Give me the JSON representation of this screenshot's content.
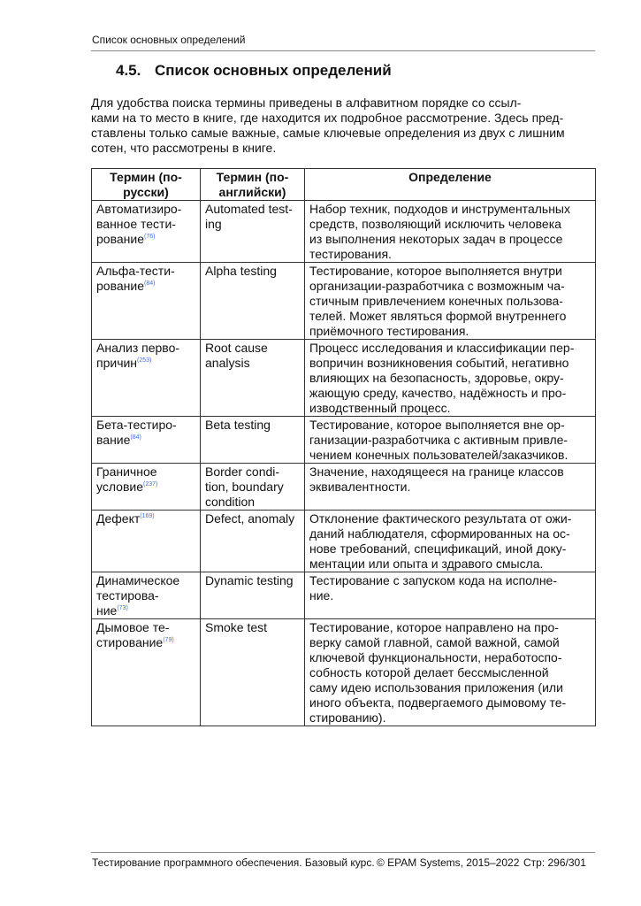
{
  "running_head": "Список основных определений",
  "section": {
    "number": "4.5.",
    "title": "Список основных определений"
  },
  "intro": "            Для удобства поиска термины приведены в алфавитном порядке со ссыл-\nками на то место в книге, где находится их подробное рассмотрение. Здесь пред-\nставлены только самые важные, самые ключевые определения из двух с лишним\nсотен, что рассмотрены в книге.",
  "table": {
    "headers": [
      "Термин (по-\nрусски)",
      "Термин (по-\nанглийски)",
      "Определение"
    ],
    "rows": [
      {
        "ru": "Автоматизиро-\nванное тести-\nрование",
        "ref": "(76)",
        "en": "Automated test-\ning",
        "def": "Набор техник, подходов и инструментальных\nсредств, позволяющий исключить человека\nиз выполнения некоторых задач в процессе\nтестирования."
      },
      {
        "ru": "Альфа-тести-\nрование",
        "ref": "(84)",
        "en": "Alpha testing",
        "def": "Тестирование, которое выполняется внутри\nорганизации-разработчика с возможным ча-\nстичным привлечением конечных пользова-\nтелей. Может являться формой внутреннего\nприёмочного тестирования."
      },
      {
        "ru": "Анализ перво-\nпричин",
        "ref": "(253)",
        "en": "Root cause\nanalysis",
        "def": "Процесс исследования и классификации пер-\nвопричин возникновения событий, негативно\nвлияющих на безопасность, здоровье, окру-\nжающую среду, качество, надёжность и про-\nизводственный процесс."
      },
      {
        "ru": "Бета-тестиро-\nвание",
        "ref": "(84)",
        "en": "Beta testing",
        "def": "Тестирование, которое выполняется вне ор-\nганизации-разработчика с активным привле-\nчением конечных пользователей/заказчиков."
      },
      {
        "ru": "Граничное\nусловие",
        "ref": "(237)",
        "en": "Border condi-\ntion, boundary\ncondition",
        "def": "Значение, находящееся на границе классов\nэквивалентности."
      },
      {
        "ru": "Дефект",
        "ref": "(169)",
        "en": "Defect, anomaly",
        "def": "Отклонение фактического результата от ожи-\nданий наблюдателя, сформированных на ос-\nнове требований, спецификаций, иной доку-\nментации или опыта и здравого смысла."
      },
      {
        "ru": "Динамическое\nтестирова-\nние",
        "ref": "(73)",
        "en": "Dynamic testing",
        "def": "Тестирование с запуском кода на исполне-\nние."
      },
      {
        "ru": "Дымовое те-\nстирование",
        "ref": "(79)",
        "en": "Smoke test",
        "def": "Тестирование, которое направлено на про-\nверку самой главной, самой важной, самой\nключевой функциональности, неработоспо-\nсобность которой делает бессмысленной\nсаму идею использования приложения (или\nиного объекта, подвергаемого дымовому те-\nстированию)."
      }
    ]
  },
  "footer": {
    "book": "Тестирование программного обеспечения. Базовый курс.",
    "copyright": "© EPAM Systems, 2015–2022",
    "page": "Стр: 296/301"
  }
}
